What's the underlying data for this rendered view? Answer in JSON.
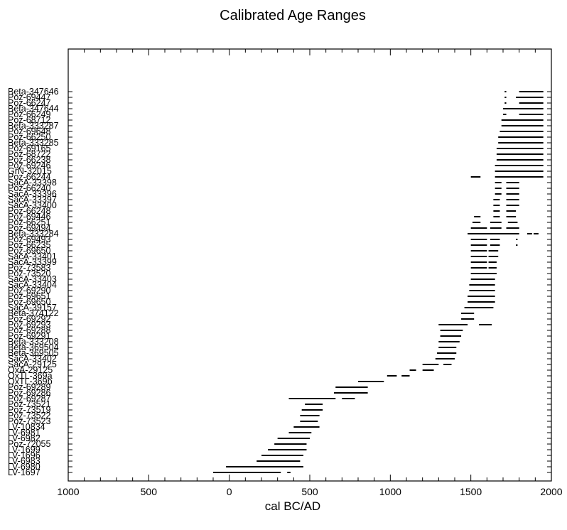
{
  "chart_data": {
    "type": "range",
    "title": "Calibrated Age Ranges",
    "xlabel": "cal BC/AD",
    "ylabel": "",
    "x_axis": {
      "min": -1000,
      "max": 2000,
      "ticks": [
        -1000,
        -500,
        0,
        500,
        1000,
        1500,
        2000
      ],
      "tick_labels": [
        "1000",
        "500",
        "0",
        "500",
        "1000",
        "1500",
        "2000"
      ]
    },
    "grid": false,
    "labels": [
      "Beta-347646",
      "Poz-69447",
      "Poz-66247",
      "Beta-347644",
      "Poz-66249",
      "Poz-68712",
      "Beta-333287",
      "Poz-69648",
      "Poz-66250",
      "Beta-333285",
      "Poz-69165",
      "Poz-68722",
      "Poz-66238",
      "Poz-69246",
      "GrN-32015",
      "Poz-66244",
      "SacA-33398",
      "Poz-66240",
      "SacA-33396",
      "SacA-33397",
      "SacA-33400",
      "Poz-66248",
      "Poz-69446",
      "Poz-66251",
      "Poz-69494",
      "Beta-333284",
      "Poz-69493",
      "Poz-66235",
      "Poz-69650",
      "SacA-33401",
      "SacA-33399",
      "Poz-73583",
      "Poz-73520",
      "SacA-33403",
      "SacA-33404",
      "Poz-69290",
      "Poz-69651",
      "Poz-69650",
      "SacA-39157",
      "Beta-374122",
      "Poz-69292",
      "Poz-69293",
      "Poz-69288",
      "Poz-69291",
      "Beta-333208",
      "Beta-369504",
      "Beta-369505",
      "SacA-33402",
      "SacA-29125",
      "OxA-29125",
      "OxTL-369a",
      "OxTL-369b",
      "Poz-69289",
      "Poz-69286",
      "Poz-69287",
      "Poz-73521",
      "Poz-73519",
      "Poz-73522",
      "Poz-73523",
      "LV-10834",
      "LV-6981",
      "LV-6982",
      "Poz-72055",
      "LV-1699",
      "LV-1696",
      "LV-6983",
      "LV-6980",
      "LV-1697"
    ],
    "ranges": [
      [
        [
          1710,
          1720
        ],
        [
          1800,
          1950
        ]
      ],
      [
        [
          1710,
          1720
        ],
        [
          1780,
          1950
        ]
      ],
      [
        [
          1710,
          1720
        ],
        [
          1800,
          1950
        ]
      ],
      [
        [
          1700,
          1950
        ]
      ],
      [
        [
          1700,
          1720
        ],
        [
          1800,
          1950
        ]
      ],
      [
        [
          1690,
          1950
        ]
      ],
      [
        [
          1690,
          1950
        ]
      ],
      [
        [
          1680,
          1950
        ]
      ],
      [
        [
          1670,
          1950
        ]
      ],
      [
        [
          1670,
          1950
        ]
      ],
      [
        [
          1660,
          1950
        ]
      ],
      [
        [
          1660,
          1950
        ]
      ],
      [
        [
          1660,
          1950
        ]
      ],
      [
        [
          1650,
          1950
        ]
      ],
      [
        [
          1650,
          1950
        ]
      ],
      [
        [
          1500,
          1560
        ],
        [
          1650,
          1950
        ]
      ],
      [
        [
          1650,
          1690
        ],
        [
          1720,
          1800
        ]
      ],
      [
        [
          1650,
          1690
        ],
        [
          1720,
          1800
        ]
      ],
      [
        [
          1650,
          1690
        ],
        [
          1720,
          1800
        ]
      ],
      [
        [
          1640,
          1680
        ],
        [
          1720,
          1800
        ]
      ],
      [
        [
          1640,
          1680
        ],
        [
          1720,
          1800
        ]
      ],
      [
        [
          1640,
          1680
        ],
        [
          1720,
          1780
        ]
      ],
      [
        [
          1520,
          1560
        ],
        [
          1640,
          1680
        ],
        [
          1720,
          1780
        ]
      ],
      [
        [
          1510,
          1560
        ],
        [
          1620,
          1690
        ],
        [
          1730,
          1790
        ]
      ],
      [
        [
          1500,
          1600
        ],
        [
          1620,
          1690
        ],
        [
          1720,
          1800
        ]
      ],
      [
        [
          1480,
          1800
        ],
        [
          1850,
          1880
        ],
        [
          1890,
          1920
        ]
      ],
      [
        [
          1500,
          1600
        ],
        [
          1620,
          1680
        ],
        [
          1780,
          1790
        ]
      ],
      [
        [
          1500,
          1600
        ],
        [
          1620,
          1680
        ],
        [
          1780,
          1790
        ]
      ],
      [
        [
          1500,
          1600
        ],
        [
          1610,
          1670
        ]
      ],
      [
        [
          1500,
          1600
        ],
        [
          1610,
          1670
        ]
      ],
      [
        [
          1500,
          1600
        ],
        [
          1610,
          1660
        ]
      ],
      [
        [
          1500,
          1600
        ],
        [
          1610,
          1660
        ]
      ],
      [
        [
          1500,
          1660
        ]
      ],
      [
        [
          1500,
          1650
        ]
      ],
      [
        [
          1490,
          1650
        ]
      ],
      [
        [
          1490,
          1650
        ]
      ],
      [
        [
          1480,
          1650
        ]
      ],
      [
        [
          1480,
          1650
        ]
      ],
      [
        [
          1460,
          1640
        ]
      ],
      [
        [
          1440,
          1520
        ]
      ],
      [
        [
          1440,
          1520
        ]
      ],
      [
        [
          1300,
          1480
        ],
        [
          1550,
          1630
        ]
      ],
      [
        [
          1310,
          1450
        ]
      ],
      [
        [
          1310,
          1440
        ]
      ],
      [
        [
          1300,
          1430
        ]
      ],
      [
        [
          1300,
          1410
        ]
      ],
      [
        [
          1290,
          1410
        ]
      ],
      [
        [
          1280,
          1400
        ]
      ],
      [
        [
          1200,
          1300
        ],
        [
          1330,
          1380
        ]
      ],
      [
        [
          1120,
          1160
        ],
        [
          1200,
          1270
        ]
      ],
      [
        [
          980,
          1040
        ],
        [
          1070,
          1120
        ]
      ],
      [
        [
          800,
          960
        ]
      ],
      [
        [
          660,
          860
        ]
      ],
      [
        [
          650,
          860
        ]
      ],
      [
        [
          370,
          660
        ],
        [
          700,
          780
        ]
      ],
      [
        [
          470,
          580
        ]
      ],
      [
        [
          450,
          580
        ]
      ],
      [
        [
          440,
          560
        ]
      ],
      [
        [
          440,
          550
        ]
      ],
      [
        [
          400,
          560
        ]
      ],
      [
        [
          370,
          510
        ]
      ],
      [
        [
          300,
          500
        ]
      ],
      [
        [
          280,
          480
        ]
      ],
      [
        [
          240,
          480
        ]
      ],
      [
        [
          200,
          460
        ]
      ],
      [
        [
          170,
          440
        ]
      ],
      [
        [
          -20,
          460
        ]
      ],
      [
        [
          -100,
          320
        ],
        [
          360,
          380
        ]
      ]
    ]
  }
}
